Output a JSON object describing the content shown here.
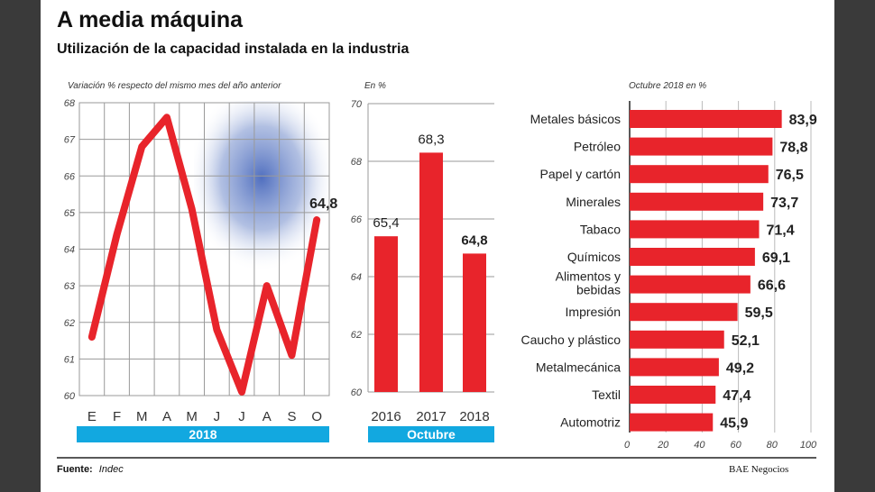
{
  "header": {
    "title": "A media máquina",
    "subtitle": "Utilización de la capacidad instalada en la industria"
  },
  "footer": {
    "source_label": "Fuente:",
    "source": "Indec",
    "brand": "BAE Negocios"
  },
  "colors": {
    "bar": "#e8242b",
    "band": "#12a8e0",
    "grid": "#9a9a9a"
  },
  "chart_data": [
    {
      "type": "line",
      "title": "Variación % respecto del mismo mes del año anterior",
      "categories": [
        "E",
        "F",
        "M",
        "A",
        "M",
        "J",
        "J",
        "A",
        "S",
        "O"
      ],
      "values": [
        61.6,
        64.4,
        66.8,
        67.6,
        65.1,
        61.8,
        60.1,
        63.0,
        61.1,
        64.8
      ],
      "ylim": [
        60,
        68
      ],
      "yticks": [
        "60",
        "61",
        "62",
        "63",
        "64",
        "65",
        "66",
        "67",
        "68"
      ],
      "last_label": "64,8",
      "band_label": "2018",
      "grid": true
    },
    {
      "type": "bar",
      "title": "En %",
      "categories": [
        "2016",
        "2017",
        "2018"
      ],
      "values": [
        65.4,
        68.3,
        64.8
      ],
      "labels": [
        "65,4",
        "68,3",
        "64,8"
      ],
      "ylim": [
        60,
        70
      ],
      "yticks": [
        "60",
        "62",
        "64",
        "66",
        "68",
        "70"
      ],
      "band_label": "Octubre"
    },
    {
      "type": "bar",
      "orientation": "horizontal",
      "title": "Octubre 2018 en %",
      "categories": [
        "Metales básicos",
        "Petróleo",
        "Papel y cartón",
        "Minerales",
        "Tabaco",
        "Químicos",
        "Alimentos y bebidas",
        "Impresión",
        "Caucho y plástico",
        "Metalmecánica",
        "Textil",
        "Automotriz"
      ],
      "values": [
        83.9,
        78.8,
        76.5,
        73.7,
        71.4,
        69.1,
        66.6,
        59.5,
        52.1,
        49.2,
        47.4,
        45.9
      ],
      "labels": [
        "83,9",
        "78,8",
        "76,5",
        "73,7",
        "71,4",
        "69,1",
        "66,6",
        "59,5",
        "52,1",
        "49,2",
        "47,4",
        "45,9"
      ],
      "xlim": [
        0,
        100
      ],
      "xticks": [
        "0",
        "20",
        "40",
        "60",
        "80",
        "100"
      ]
    }
  ]
}
